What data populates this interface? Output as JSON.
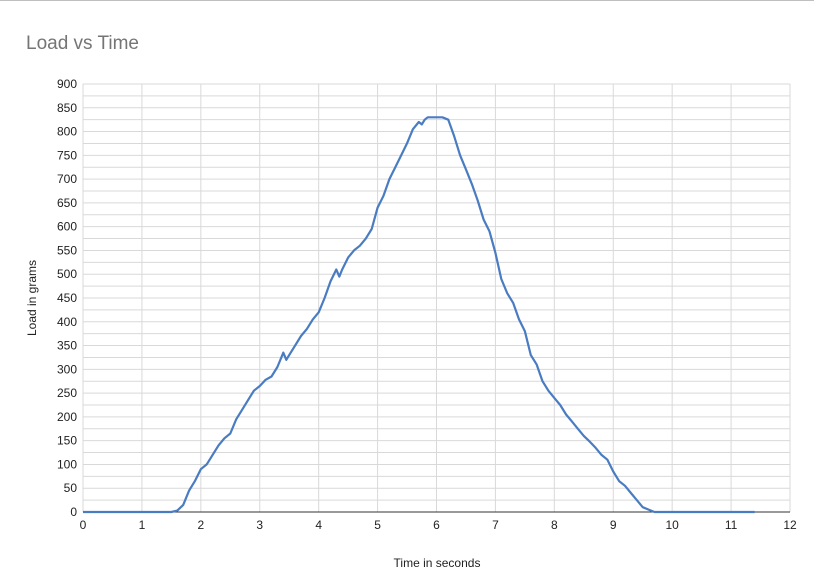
{
  "chart_data": {
    "type": "line",
    "title": "Load vs Time",
    "xlabel": "Time in seconds",
    "ylabel": "Load in grams",
    "xlim": [
      0,
      12
    ],
    "ylim": [
      0,
      900
    ],
    "x_ticks": [
      0,
      1,
      2,
      3,
      4,
      5,
      6,
      7,
      8,
      9,
      10,
      11,
      12
    ],
    "y_ticks": [
      0,
      50,
      100,
      150,
      200,
      250,
      300,
      350,
      400,
      450,
      500,
      550,
      600,
      650,
      700,
      750,
      800,
      850,
      900
    ],
    "grid": true,
    "legend": "none",
    "line_color": "#4a7cc2",
    "series": [
      {
        "x": [
          0.0,
          0.5,
          1.0,
          1.5,
          1.6,
          1.7,
          1.8,
          1.9,
          2.0,
          2.1,
          2.2,
          2.3,
          2.4,
          2.5,
          2.6,
          2.7,
          2.8,
          2.9,
          3.0,
          3.1,
          3.2,
          3.3,
          3.4,
          3.45,
          3.5,
          3.6,
          3.7,
          3.8,
          3.9,
          4.0,
          4.1,
          4.2,
          4.3,
          4.35,
          4.4,
          4.5,
          4.6,
          4.7,
          4.8,
          4.9,
          5.0,
          5.1,
          5.2,
          5.3,
          5.4,
          5.5,
          5.6,
          5.7,
          5.75,
          5.8,
          5.85,
          5.9,
          6.0,
          6.1,
          6.2,
          6.3,
          6.4,
          6.5,
          6.6,
          6.7,
          6.8,
          6.9,
          7.0,
          7.1,
          7.2,
          7.3,
          7.4,
          7.5,
          7.6,
          7.7,
          7.8,
          7.9,
          8.0,
          8.1,
          8.2,
          8.3,
          8.4,
          8.5,
          8.6,
          8.7,
          8.8,
          8.9,
          9.0,
          9.1,
          9.2,
          9.3,
          9.4,
          9.5,
          9.6,
          9.7,
          9.8,
          9.9,
          10.0,
          10.5,
          11.0,
          11.4
        ],
        "y": [
          0,
          0,
          0,
          0,
          3,
          15,
          45,
          65,
          90,
          100,
          120,
          140,
          155,
          165,
          195,
          215,
          235,
          255,
          265,
          278,
          285,
          305,
          335,
          320,
          330,
          350,
          370,
          385,
          405,
          420,
          450,
          485,
          510,
          495,
          510,
          535,
          550,
          560,
          575,
          595,
          640,
          665,
          700,
          725,
          750,
          775,
          805,
          820,
          815,
          825,
          830,
          830,
          830,
          830,
          825,
          790,
          750,
          720,
          690,
          655,
          615,
          590,
          545,
          490,
          460,
          440,
          405,
          380,
          330,
          310,
          275,
          255,
          240,
          225,
          205,
          190,
          175,
          160,
          148,
          135,
          120,
          110,
          85,
          65,
          55,
          40,
          25,
          10,
          5,
          0,
          0,
          0,
          0,
          0,
          0,
          0
        ]
      }
    ]
  }
}
